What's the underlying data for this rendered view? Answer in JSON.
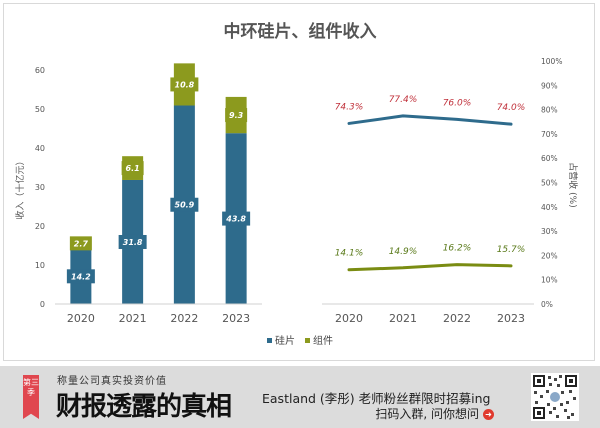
{
  "chart_data": [
    {
      "type": "bar",
      "stacked": true,
      "title": "中环硅片、组件收入",
      "ylabel": "收入（十亿元）",
      "xlabel": "",
      "categories": [
        "2020",
        "2021",
        "2022",
        "2023"
      ],
      "ylim": [
        0,
        60
      ],
      "yticks": [
        "0",
        "10",
        "20",
        "30",
        "40",
        "50",
        "60"
      ],
      "series": [
        {
          "name": "硅片",
          "color": "#2e6b8c",
          "values": [
            14.2,
            31.8,
            50.9,
            43.8
          ],
          "labels": [
            "14.2",
            "31.8",
            "50.9",
            "43.8"
          ]
        },
        {
          "name": "组件",
          "color": "#8c9a1e",
          "values": [
            2.7,
            6.1,
            10.8,
            9.3
          ],
          "labels": [
            "2.7",
            "6.1",
            "10.8",
            "9.3"
          ]
        }
      ],
      "grid": false
    },
    {
      "type": "line",
      "ylabel": "占营收 (%)",
      "categories": [
        "2020",
        "2021",
        "2022",
        "2023"
      ],
      "ylim": [
        0,
        100
      ],
      "yticks": [
        "0%",
        "10%",
        "20%",
        "30%",
        "40%",
        "50%",
        "60%",
        "70%",
        "80%",
        "90%",
        "100%"
      ],
      "series": [
        {
          "name": "硅片",
          "color": "#2e6b8c",
          "label_color": "#c0303a",
          "values": [
            74.3,
            77.4,
            76.0,
            74.0
          ],
          "labels": [
            "74.3%",
            "77.4%",
            "76.0%",
            "74.0%"
          ]
        },
        {
          "name": "组件",
          "color": "#7a8c12",
          "label_color": "#5a7a1a",
          "values": [
            14.1,
            14.9,
            16.2,
            15.7
          ],
          "labels": [
            "14.1%",
            "14.9%",
            "16.2%",
            "15.7%"
          ]
        }
      ],
      "legend": "bottom-center"
    }
  ],
  "legend": {
    "items": [
      "硅片",
      "组件"
    ]
  },
  "footer": {
    "badge": "第三季",
    "slogan": "称量公司真实投资价值",
    "brand": "财报透露的真相",
    "promo_line1": "Eastland (李彤) 老师粉丝群限时招募ing",
    "promo_line2": "扫码入群, 问你想问",
    "qr_icon": "qr-code-icon"
  }
}
